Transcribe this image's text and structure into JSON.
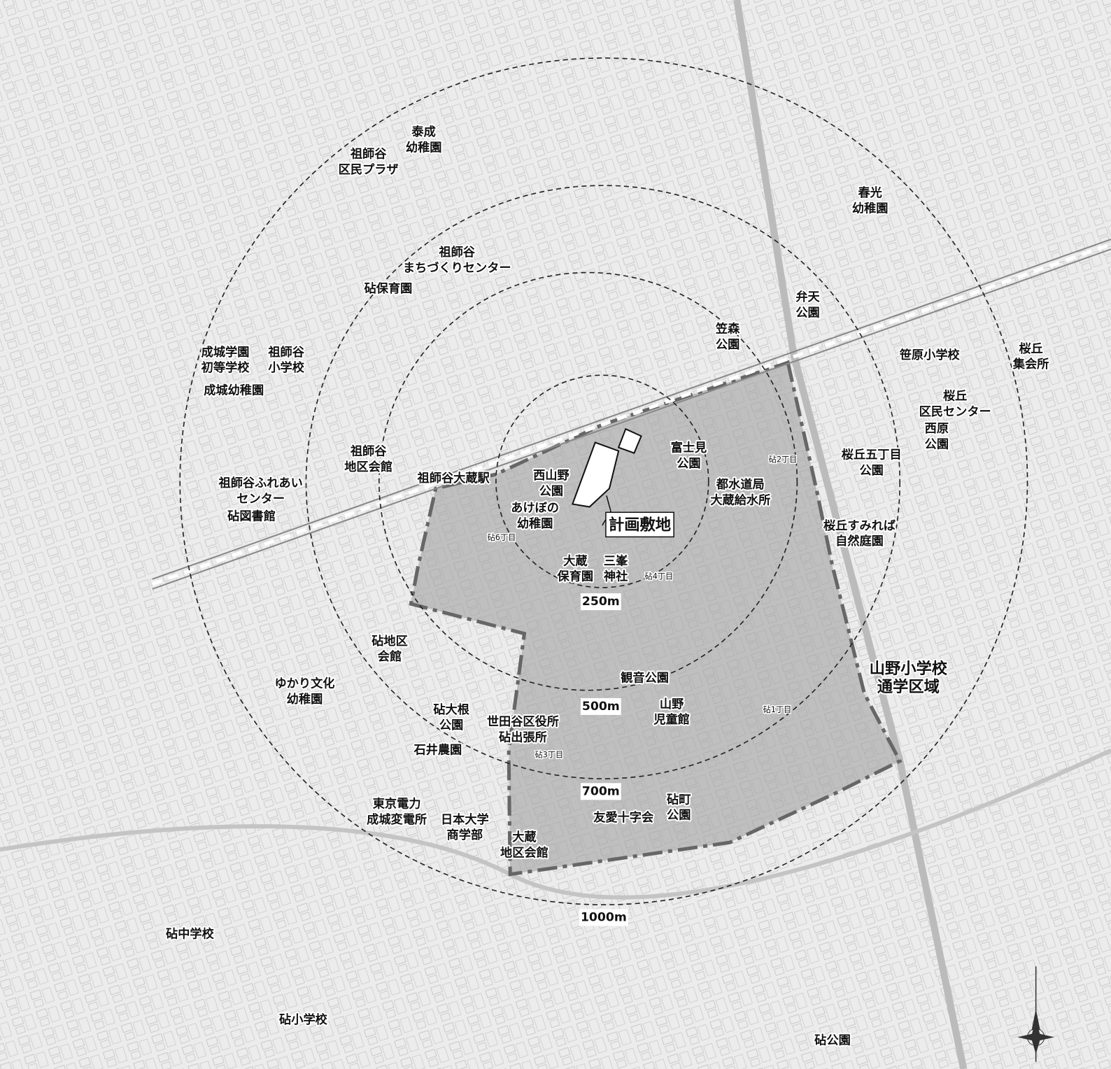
{
  "facilities": [
    {
      "lines": [
        "泰成",
        "幼稚園"
      ]
    },
    {
      "lines": [
        "祖師谷",
        "区民プラザ"
      ]
    },
    {
      "lines": [
        "春光",
        "幼稚園"
      ]
    },
    {
      "lines": [
        "祖師谷",
        "まちづくりセンター"
      ]
    },
    {
      "lines": [
        "砧保育園"
      ]
    },
    {
      "lines": [
        "弁天",
        "公園"
      ]
    },
    {
      "lines": [
        "笠森",
        "公園"
      ]
    },
    {
      "lines": [
        "成城学園",
        "初等学校"
      ]
    },
    {
      "lines": [
        "祖師谷",
        "小学校"
      ]
    },
    {
      "lines": [
        "笹原小学校"
      ]
    },
    {
      "lines": [
        "桜丘",
        "集会所"
      ]
    },
    {
      "lines": [
        "成城幼稚園"
      ]
    },
    {
      "lines": [
        "桜丘",
        "区民センター"
      ]
    },
    {
      "lines": [
        "西原",
        "公園"
      ]
    },
    {
      "lines": [
        "富士見",
        "公園"
      ]
    },
    {
      "lines": [
        "祖師谷",
        "地区会館"
      ]
    },
    {
      "lines": [
        "桜丘五丁目",
        "公園"
      ]
    },
    {
      "lines": [
        "祖師谷ふれあい",
        "センター"
      ]
    },
    {
      "lines": [
        "祖師谷大蔵駅"
      ]
    },
    {
      "lines": [
        "西山野",
        "公園"
      ]
    },
    {
      "lines": [
        "都水道局",
        "大蔵給水所"
      ]
    },
    {
      "lines": [
        "砧図書館"
      ]
    },
    {
      "lines": [
        "あけぼの",
        "幼稚園"
      ]
    },
    {
      "lines": [
        "桜丘すみれば",
        "自然庭園"
      ]
    },
    {
      "lines": [
        "大蔵",
        "保育園"
      ]
    },
    {
      "lines": [
        "三峯",
        "神社"
      ]
    },
    {
      "lines": [
        "砧地区",
        "会館"
      ]
    },
    {
      "lines": [
        "観音公園"
      ]
    },
    {
      "lines": [
        "ゆかり文化",
        "幼稚園"
      ]
    },
    {
      "lines": [
        "山野",
        "児童館"
      ]
    },
    {
      "lines": [
        "砧大根",
        "公園"
      ]
    },
    {
      "lines": [
        "世田谷区役所",
        "砧出張所"
      ]
    },
    {
      "lines": [
        "石井農園"
      ]
    },
    {
      "lines": [
        "砧町",
        "公園"
      ]
    },
    {
      "lines": [
        "友愛十字会"
      ]
    },
    {
      "lines": [
        "東京電力",
        "成城変電所"
      ]
    },
    {
      "lines": [
        "日本大学",
        "商学部"
      ]
    },
    {
      "lines": [
        "大蔵",
        "地区会館"
      ]
    },
    {
      "lines": [
        "砧中学校"
      ]
    },
    {
      "lines": [
        "砧小学校"
      ]
    },
    {
      "lines": [
        "砧公園"
      ]
    }
  ],
  "chome": [
    "砧2丁目",
    "砧6丁目",
    "砧4丁目",
    "砧1丁目",
    "砧3丁目"
  ],
  "rings": [
    "250m",
    "500m",
    "700m",
    "1000m"
  ],
  "site": "計画敷地",
  "school_district": [
    "山野小学校",
    "通学区域"
  ]
}
